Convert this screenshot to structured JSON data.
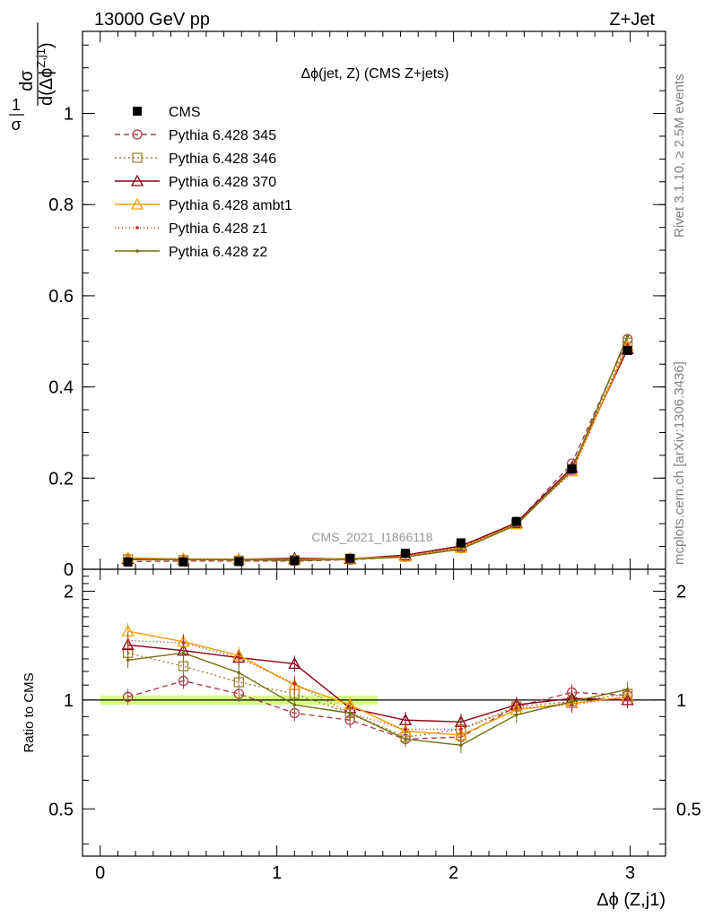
{
  "header": {
    "left": "13000 GeV pp",
    "right": "Z+Jet"
  },
  "side_text": {
    "rivet": "Rivet 3.1.10, ≥ 2.5M events",
    "mcplots": "mcplots.cern.ch [arXiv:1306.3436]"
  },
  "watermark": "CMS_2021_I1866118",
  "chart_data": [
    {
      "type": "line",
      "title": "Δϕ(jet, Z) (CMS Z+jets)",
      "ylabel": "1/σ dσ/d(Δϕ^{Z,j1})",
      "ylabel_parts": {
        "one": "1",
        "sigma": "σ",
        "dsigma": "dσ",
        "dphi": "d(Δϕ",
        "sup": "Z,j1",
        "close": ")"
      },
      "xlim": [
        -0.1,
        3.2
      ],
      "ylim": [
        0,
        1.18
      ],
      "yticks": [
        0,
        0.2,
        0.4,
        0.6,
        0.8,
        1
      ],
      "ytick_labels": [
        "0",
        "0.2",
        "0.4",
        "0.6",
        "0.8",
        "1"
      ],
      "x": [
        0.157,
        0.471,
        0.785,
        1.1,
        1.414,
        1.728,
        2.042,
        2.356,
        2.67,
        2.985
      ],
      "data": {
        "name": "CMS",
        "values": [
          0.016,
          0.016,
          0.017,
          0.019,
          0.024,
          0.035,
          0.058,
          0.105,
          0.22,
          0.48
        ]
      },
      "legend_position": "top-left",
      "series": [
        {
          "name": "Pythia 6.428 345",
          "color": "#b03a48",
          "dash": "6,4",
          "marker": "circle",
          "values": [
            0.017,
            0.018,
            0.018,
            0.018,
            0.021,
            0.027,
            0.046,
            0.101,
            0.232,
            0.505
          ]
        },
        {
          "name": "Pythia 6.428 346",
          "color": "#a08030",
          "dash": "2,3",
          "marker": "square",
          "values": [
            0.022,
            0.02,
            0.019,
            0.02,
            0.022,
            0.028,
            0.048,
            0.101,
            0.218,
            0.497
          ]
        },
        {
          "name": "Pythia 6.428 370",
          "color": "#8b0015",
          "dash": "",
          "marker": "triangle",
          "values": [
            0.023,
            0.022,
            0.022,
            0.024,
            0.023,
            0.031,
            0.051,
            0.102,
            0.223,
            0.483
          ]
        },
        {
          "name": "Pythia 6.428 ambt1",
          "color": "#f0a000",
          "dash": "",
          "marker": "triangle",
          "values": [
            0.025,
            0.023,
            0.022,
            0.021,
            0.024,
            0.028,
            0.047,
            0.099,
            0.215,
            0.49
          ]
        },
        {
          "name": "Pythia 6.428 z1",
          "color": "#c8281e",
          "dash": "1,3",
          "marker": "dot",
          "values": [
            0.022,
            0.023,
            0.022,
            0.021,
            0.022,
            0.029,
            0.048,
            0.1,
            0.212,
            0.492
          ]
        },
        {
          "name": "Pythia 6.428 z2",
          "color": "#707010",
          "dash": "",
          "marker": "dot",
          "values": [
            0.021,
            0.021,
            0.021,
            0.019,
            0.022,
            0.027,
            0.044,
            0.097,
            0.218,
            0.512
          ]
        }
      ]
    },
    {
      "type": "line",
      "ylabel": "Ratio to CMS",
      "xlabel": "Δϕ (Z,j1)",
      "xlim": [
        -0.1,
        3.2
      ],
      "ylim": [
        0.37,
        2.3
      ],
      "yticks": [
        0.5,
        1,
        2
      ],
      "ytick_labels": [
        "0.5",
        "1",
        "2"
      ],
      "xticks": [
        0,
        1,
        2,
        3
      ],
      "xtick_labels": [
        "0",
        "1",
        "2",
        "3"
      ],
      "x": [
        0.157,
        0.471,
        0.785,
        1.1,
        1.414,
        1.728,
        2.042,
        2.356,
        2.67,
        2.985
      ],
      "band_color": "#ccff66",
      "series": [
        {
          "name": "Pythia 6.428 345",
          "color": "#b03a48",
          "dash": "6,4",
          "marker": "circle",
          "values": [
            1.02,
            1.13,
            1.04,
            0.92,
            0.88,
            0.78,
            0.79,
            0.96,
            1.05,
            1.03
          ]
        },
        {
          "name": "Pythia 6.428 346",
          "color": "#a08030",
          "dash": "2,3",
          "marker": "square",
          "values": [
            1.35,
            1.24,
            1.12,
            1.04,
            0.92,
            0.79,
            0.83,
            0.96,
            0.99,
            1.04
          ]
        },
        {
          "name": "Pythia 6.428 370",
          "color": "#8b0015",
          "dash": "",
          "marker": "triangle",
          "values": [
            1.42,
            1.37,
            1.31,
            1.26,
            0.95,
            0.88,
            0.87,
            0.97,
            1.01,
            1.0
          ]
        },
        {
          "name": "Pythia 6.428 ambt1",
          "color": "#f0a000",
          "dash": "",
          "marker": "triangle",
          "values": [
            1.55,
            1.45,
            1.33,
            1.1,
            0.97,
            0.82,
            0.8,
            0.94,
            0.98,
            1.02
          ]
        },
        {
          "name": "Pythia 6.428 z1",
          "color": "#c8281e",
          "dash": "1,3",
          "marker": "dot",
          "values": [
            1.46,
            1.44,
            1.31,
            1.11,
            0.92,
            0.83,
            0.83,
            0.95,
            0.97,
            1.02
          ]
        },
        {
          "name": "Pythia 6.428 z2",
          "color": "#707010",
          "dash": "",
          "marker": "dot",
          "values": [
            1.29,
            1.35,
            1.19,
            0.97,
            0.92,
            0.78,
            0.75,
            0.91,
            0.99,
            1.07
          ]
        }
      ]
    }
  ]
}
